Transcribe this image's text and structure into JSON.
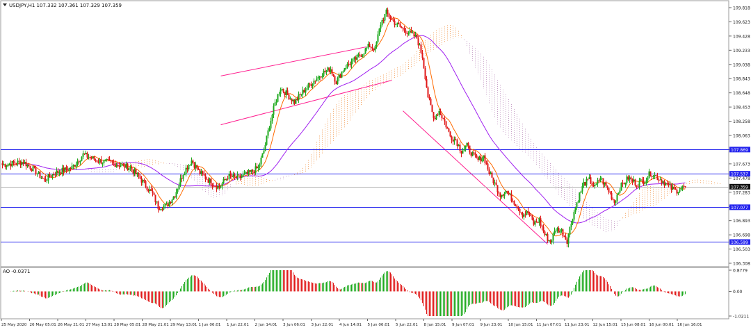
{
  "window": {
    "header_text": "USDJPY,H1  107.332 107.361 107.329 107.359",
    "symbol": "USDJPY,H1",
    "ohlc": {
      "open": 107.332,
      "high": 107.361,
      "low": 107.329,
      "close": 107.359
    }
  },
  "price_axis": {
    "ticks": [
      "109.818",
      "109.623",
      "109.428",
      "109.233",
      "109.038",
      "108.843",
      "108.648",
      "108.453",
      "108.258",
      "108.063",
      "107.868",
      "107.673",
      "107.478",
      "107.283",
      "107.088",
      "106.893",
      "106.698",
      "106.503",
      "106.308"
    ],
    "range": [
      106.308,
      109.818
    ]
  },
  "levels": [
    {
      "label": "107.869",
      "value": 107.869,
      "color": "#2222ee"
    },
    {
      "label": "107.537",
      "value": 107.537,
      "color": "#2222ee"
    },
    {
      "label": "107.077",
      "value": 107.077,
      "color": "#2222ee"
    },
    {
      "label": "106.599",
      "value": 106.599,
      "color": "#2222ee"
    }
  ],
  "current_price": {
    "label": "107.359",
    "value": 107.359
  },
  "ao_panel": {
    "label": "AO -0.0371",
    "ticks": [
      "0.8779",
      "0.00",
      "-1.0211"
    ],
    "range": [
      -1.0211,
      0.8779
    ]
  },
  "time_axis": {
    "labels": [
      "25 May 2020",
      "26 May 05:01",
      "26 May 21:01",
      "27 May 13:01",
      "28 May 05:01",
      "28 May 21:01",
      "29 May 13:01",
      "1 Jun 06:01",
      "1 Jun 22:01",
      "2 Jun 14:01",
      "3 Jun 06:01",
      "3 Jun 22:01",
      "4 Jun 14:01",
      "5 Jun 06:01",
      "5 Jun 22:01",
      "8 Jun 15:01",
      "9 Jun 07:01",
      "9 Jun 23:01",
      "10 Jun 15:01",
      "11 Jun 07:01",
      "11 Jun 23:01",
      "12 Jun 15:01",
      "15 Jun 08:01",
      "16 Jun 00:01",
      "16 Jun 16:01"
    ]
  },
  "colors": {
    "bull": "#1faa1f",
    "bear": "#e01818",
    "ma_fast": "#ff6a00",
    "ma_slow": "#a020f0",
    "cloud_up": "#f4a460",
    "cloud_down": "#c8a0c8",
    "channel": "#ff2090",
    "level": "#2222ee"
  },
  "chart_data": {
    "type": "candlestick",
    "symbol": "USDJPY",
    "timeframe": "H1",
    "y_range": [
      106.308,
      109.818
    ],
    "anchors": [
      [
        0,
        107.66
      ],
      [
        15,
        107.7
      ],
      [
        22,
        107.6
      ],
      [
        30,
        107.45
      ],
      [
        38,
        107.55
      ],
      [
        50,
        107.62
      ],
      [
        58,
        107.8
      ],
      [
        68,
        107.72
      ],
      [
        80,
        107.68
      ],
      [
        92,
        107.62
      ],
      [
        100,
        107.45
      ],
      [
        108,
        107.26
      ],
      [
        112,
        107.08
      ],
      [
        118,
        107.1
      ],
      [
        124,
        107.25
      ],
      [
        130,
        107.55
      ],
      [
        136,
        107.72
      ],
      [
        142,
        107.55
      ],
      [
        150,
        107.42
      ],
      [
        156,
        107.35
      ],
      [
        162,
        107.5
      ],
      [
        170,
        107.48
      ],
      [
        178,
        107.55
      ],
      [
        184,
        107.62
      ],
      [
        188,
        107.85
      ],
      [
        192,
        108.2
      ],
      [
        196,
        108.5
      ],
      [
        200,
        108.72
      ],
      [
        206,
        108.6
      ],
      [
        210,
        108.52
      ],
      [
        216,
        108.66
      ],
      [
        222,
        108.78
      ],
      [
        230,
        108.92
      ],
      [
        236,
        108.98
      ],
      [
        240,
        108.8
      ],
      [
        246,
        109.0
      ],
      [
        252,
        109.08
      ],
      [
        258,
        109.18
      ],
      [
        264,
        109.3
      ],
      [
        268,
        109.25
      ],
      [
        272,
        109.6
      ],
      [
        276,
        109.75
      ],
      [
        280,
        109.65
      ],
      [
        286,
        109.55
      ],
      [
        292,
        109.48
      ],
      [
        298,
        109.4
      ],
      [
        302,
        109.15
      ],
      [
        306,
        108.6
      ],
      [
        310,
        108.3
      ],
      [
        314,
        108.4
      ],
      [
        318,
        108.25
      ],
      [
        322,
        108.05
      ],
      [
        326,
        108.0
      ],
      [
        330,
        107.85
      ],
      [
        334,
        107.92
      ],
      [
        338,
        107.8
      ],
      [
        342,
        107.72
      ],
      [
        346,
        107.78
      ],
      [
        350,
        107.55
      ],
      [
        354,
        107.4
      ],
      [
        358,
        107.25
      ],
      [
        362,
        107.3
      ],
      [
        366,
        107.2
      ],
      [
        370,
        107.1
      ],
      [
        374,
        106.98
      ],
      [
        378,
        107.0
      ],
      [
        382,
        106.85
      ],
      [
        386,
        106.9
      ],
      [
        390,
        106.7
      ],
      [
        394,
        106.6
      ],
      [
        398,
        106.78
      ],
      [
        402,
        106.75
      ],
      [
        406,
        106.62
      ],
      [
        410,
        106.95
      ],
      [
        414,
        107.2
      ],
      [
        418,
        107.4
      ],
      [
        422,
        107.45
      ],
      [
        426,
        107.35
      ],
      [
        430,
        107.48
      ],
      [
        436,
        107.3
      ],
      [
        440,
        107.15
      ],
      [
        444,
        107.35
      ],
      [
        450,
        107.48
      ],
      [
        456,
        107.4
      ],
      [
        462,
        107.45
      ],
      [
        466,
        107.55
      ],
      [
        470,
        107.5
      ],
      [
        476,
        107.42
      ],
      [
        480,
        107.35
      ],
      [
        484,
        107.3
      ],
      [
        490,
        107.359
      ]
    ],
    "horizontal_levels": [
      107.869,
      107.537,
      107.077,
      106.599
    ],
    "indicator": {
      "name": "AO",
      "value": -0.0371,
      "range": [
        -1.0211,
        0.8779
      ]
    }
  }
}
